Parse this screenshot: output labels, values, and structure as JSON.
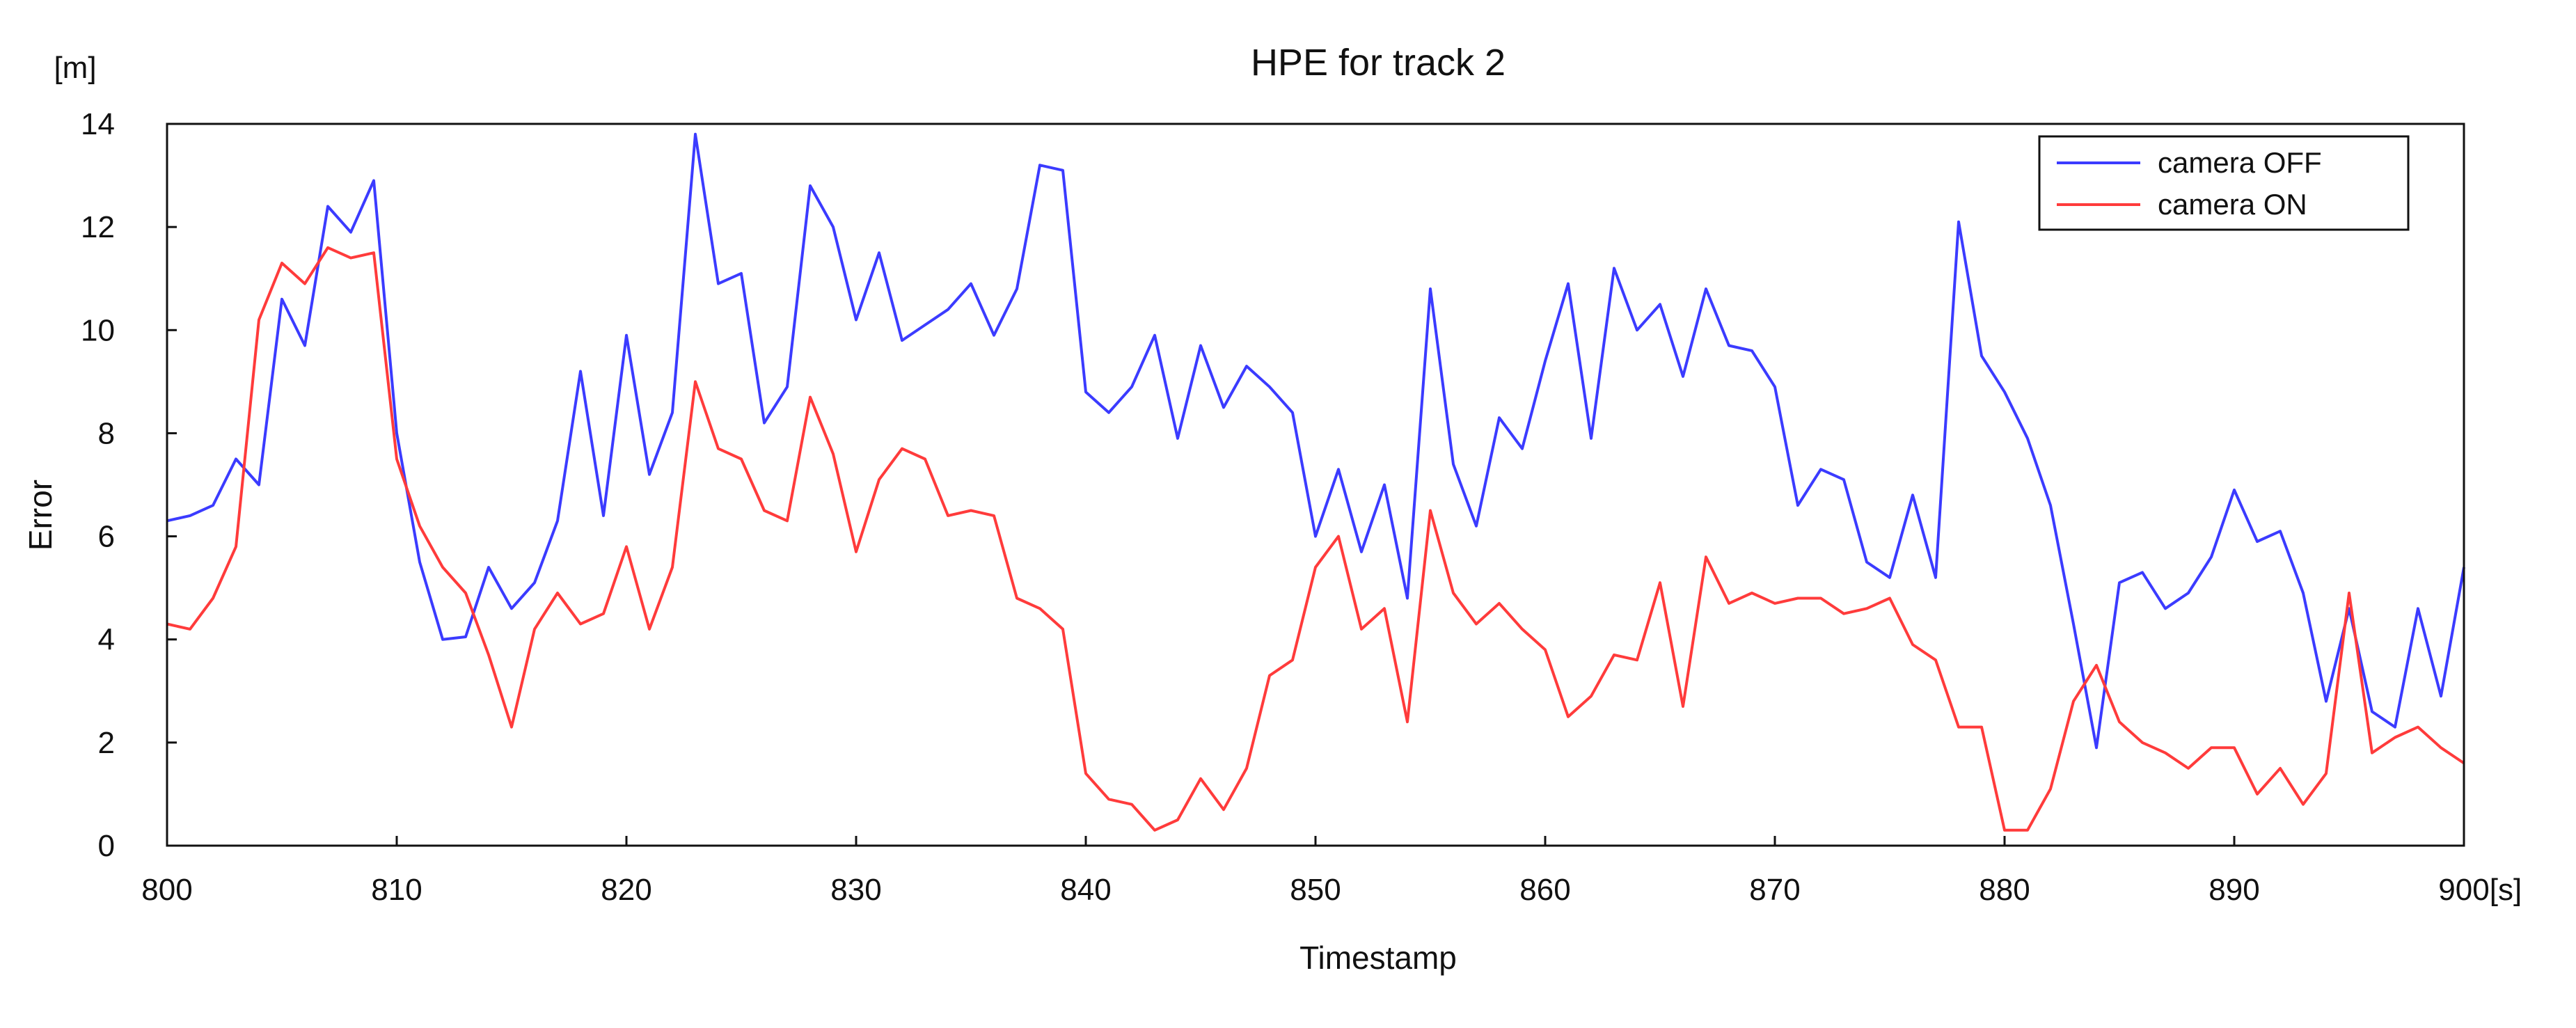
{
  "chart_data": {
    "type": "line",
    "title": "HPE for track 2",
    "xlabel": "Timestamp",
    "ylabel": "Error",
    "x_unit": "[s]",
    "y_unit": "[m]",
    "xlim": [
      800,
      900
    ],
    "ylim": [
      0,
      14
    ],
    "xticks": [
      800,
      810,
      820,
      830,
      840,
      850,
      860,
      870,
      880,
      890,
      900
    ],
    "yticks": [
      0,
      2,
      4,
      6,
      8,
      10,
      12,
      14
    ],
    "grid": false,
    "legend_position": "top-right",
    "x": [
      800,
      801,
      802,
      803,
      804,
      805,
      806,
      807,
      808,
      809,
      810,
      811,
      812,
      813,
      814,
      815,
      816,
      817,
      818,
      819,
      820,
      821,
      822,
      823,
      824,
      825,
      826,
      827,
      828,
      829,
      830,
      831,
      832,
      833,
      834,
      835,
      836,
      837,
      838,
      839,
      840,
      841,
      842,
      843,
      844,
      845,
      846,
      847,
      848,
      849,
      850,
      851,
      852,
      853,
      854,
      855,
      856,
      857,
      858,
      859,
      860,
      861,
      862,
      863,
      864,
      865,
      866,
      867,
      868,
      869,
      870,
      871,
      872,
      873,
      874,
      875,
      876,
      877,
      878,
      879,
      880,
      881,
      882,
      883,
      884,
      885,
      886,
      887,
      888,
      889,
      890,
      891,
      892,
      893,
      894,
      895,
      896,
      897,
      898,
      899,
      900
    ],
    "series": [
      {
        "name": "camera OFF",
        "color": "#3b3bff",
        "values": [
          6.3,
          6.4,
          6.6,
          7.5,
          7.0,
          10.6,
          9.7,
          12.4,
          11.9,
          12.9,
          8.0,
          5.5,
          4.0,
          4.05,
          5.4,
          4.6,
          5.1,
          6.3,
          9.2,
          6.4,
          9.9,
          7.2,
          8.4,
          13.8,
          10.9,
          11.1,
          8.2,
          8.9,
          12.8,
          12.0,
          10.2,
          11.5,
          9.8,
          10.1,
          10.4,
          10.9,
          9.9,
          10.8,
          13.2,
          13.1,
          8.8,
          8.4,
          8.9,
          9.9,
          7.9,
          9.7,
          8.5,
          9.3,
          8.9,
          8.4,
          6.0,
          7.3,
          5.7,
          7.0,
          4.8,
          10.8,
          7.4,
          6.2,
          8.3,
          7.7,
          9.4,
          10.9,
          7.9,
          11.2,
          10.0,
          10.5,
          9.1,
          10.8,
          9.7,
          9.6,
          8.9,
          6.6,
          7.3,
          7.1,
          5.5,
          5.2,
          6.8,
          5.2,
          12.1,
          9.5,
          8.8,
          7.9,
          6.6,
          4.3,
          1.9,
          5.1,
          5.3,
          4.6,
          4.9,
          5.6,
          6.9,
          5.9,
          6.1,
          4.9,
          2.8,
          4.6,
          2.6,
          2.3,
          4.6,
          2.9,
          5.4
        ]
      },
      {
        "name": "camera ON",
        "color": "#ff3b3b",
        "values": [
          4.3,
          4.2,
          4.8,
          5.8,
          10.2,
          11.3,
          10.9,
          11.6,
          11.4,
          11.5,
          7.5,
          6.2,
          5.4,
          4.9,
          3.7,
          2.3,
          4.2,
          4.9,
          4.3,
          4.5,
          5.8,
          4.2,
          5.4,
          9.0,
          7.7,
          7.5,
          6.5,
          6.3,
          8.7,
          7.6,
          5.7,
          7.1,
          7.7,
          7.5,
          6.4,
          6.5,
          6.4,
          4.8,
          4.6,
          4.2,
          1.4,
          0.9,
          0.8,
          0.3,
          0.5,
          1.3,
          0.7,
          1.5,
          3.3,
          3.6,
          5.4,
          6.0,
          4.2,
          4.6,
          2.4,
          6.5,
          4.9,
          4.3,
          4.7,
          4.2,
          3.8,
          2.5,
          2.9,
          3.7,
          3.6,
          5.1,
          2.7,
          5.6,
          4.7,
          4.9,
          4.7,
          4.8,
          4.8,
          4.5,
          4.6,
          4.8,
          3.9,
          3.6,
          2.3,
          2.3,
          0.3,
          0.3,
          1.1,
          2.8,
          3.5,
          2.4,
          2.0,
          1.8,
          1.5,
          1.9,
          1.9,
          1.0,
          1.5,
          0.8,
          1.4,
          4.9,
          1.8,
          2.1,
          2.3,
          1.9,
          1.6
        ]
      }
    ]
  }
}
